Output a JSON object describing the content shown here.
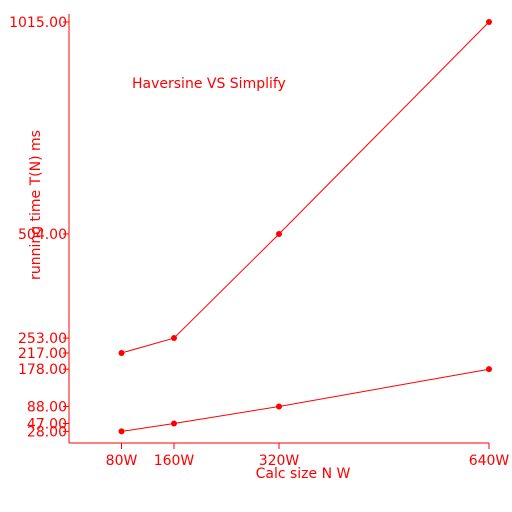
{
  "chart_data": {
    "type": "line",
    "title": "Haversine VS Simplify",
    "xlabel": "Calc size N W",
    "ylabel": "running time T(N) ms",
    "categories": [
      "80W",
      "160W",
      "320W",
      "640W"
    ],
    "x": [
      80,
      160,
      320,
      640
    ],
    "xlim": [
      0,
      640
    ],
    "ylim": [
      0,
      1015
    ],
    "yticks": [
      "28.00",
      "47.00",
      "88.00",
      "178.00",
      "217.00",
      "253.00",
      "504.00",
      "1015.00"
    ],
    "ytick_values": [
      28,
      47,
      88,
      178,
      217,
      253,
      504,
      1015
    ],
    "series": [
      {
        "values": [
          217,
          253,
          504,
          1015
        ]
      },
      {
        "values": [
          28,
          47,
          88,
          178
        ]
      }
    ],
    "grid": false,
    "colors": {
      "line": "#ff0000"
    }
  }
}
